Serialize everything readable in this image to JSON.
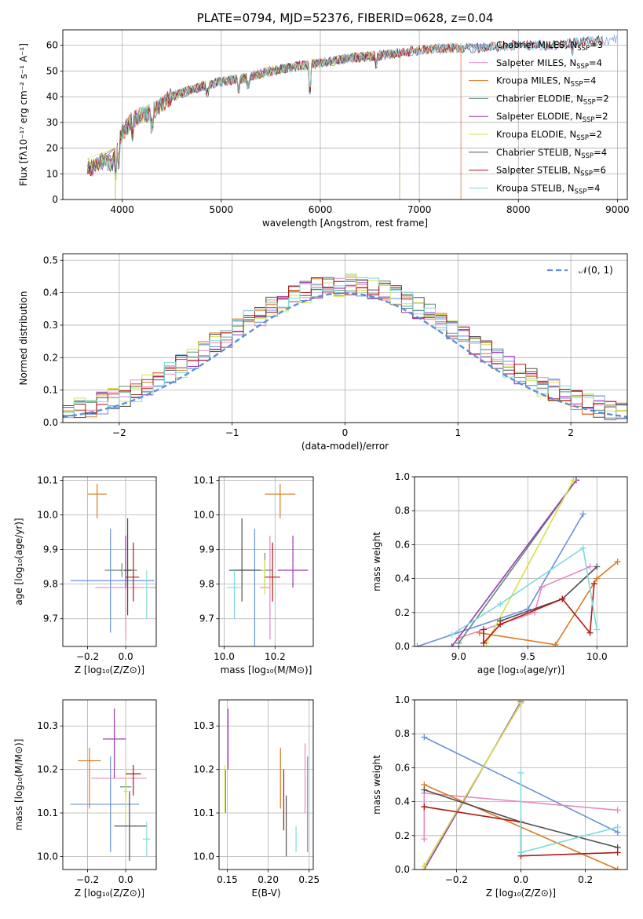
{
  "palette": [
    "#6b8fdb",
    "#e889c0",
    "#dd7a20",
    "#5f8d76",
    "#9b38b2",
    "#d4e24a",
    "#505050",
    "#b01818",
    "#7edbdc"
  ],
  "chart_data": [
    {
      "id": "spectrum",
      "type": "line",
      "title": "PLATE=0794, MJD=52376, FIBERID=0628, z=0.04",
      "xlabel": "wavelength [Angstrom, rest frame]",
      "ylabel": "Flux [fλ10⁻¹⁷ erg cm⁻² s⁻¹ A⁻¹]",
      "xlim": [
        3400,
        9100
      ],
      "ylim": [
        0,
        66
      ],
      "xticks": [
        4000,
        5000,
        6000,
        7000,
        8000,
        9000
      ],
      "yticks": [
        0,
        10,
        20,
        30,
        40,
        50,
        60
      ],
      "legend_position": "top-right",
      "continuum": {
        "x": [
          3650,
          3700,
          3800,
          3900,
          3950,
          4000,
          4100,
          4200,
          4300,
          4500,
          4800,
          5000,
          5200,
          5500,
          5800,
          6000,
          6300,
          6600,
          6800,
          7000,
          7300,
          7600,
          8000,
          8300,
          8600,
          8800
        ],
        "y": [
          13,
          12,
          15,
          14,
          20,
          26,
          31,
          33,
          34,
          40,
          44,
          46,
          47,
          50,
          52,
          53,
          55,
          56,
          57,
          58,
          59,
          59,
          60,
          60,
          61,
          62
        ]
      },
      "series": [
        {
          "name": "Chabrier MILES, N_SSP=3",
          "label_main": "Chabrier MILES, N",
          "label_sub": "SSP",
          "label_tail": "=3",
          "end": 9000
        },
        {
          "name": "Salpeter MILES, N_SSP=4",
          "label_main": "Salpeter MILES, N",
          "label_sub": "SSP",
          "label_tail": "=4",
          "end": 7420
        },
        {
          "name": "Kroupa MILES, N_SSP=4",
          "label_main": "Kroupa MILES, N",
          "label_sub": "SSP",
          "label_tail": "=4",
          "end": 7420
        },
        {
          "name": "Chabrier ELODIE, N_SSP=2",
          "label_main": "Chabrier ELODIE, N",
          "label_sub": "SSP",
          "label_tail": "=2",
          "end": 6800
        },
        {
          "name": "Salpeter ELODIE, N_SSP=2",
          "label_main": "Salpeter ELODIE, N",
          "label_sub": "SSP",
          "label_tail": "=2",
          "end": 6800
        },
        {
          "name": "Kroupa ELODIE, N_SSP=2",
          "label_main": "Kroupa ELODIE, N",
          "label_sub": "SSP",
          "label_tail": "=2",
          "end": 6800
        },
        {
          "name": "Chabrier STELIB, N_SSP=4",
          "label_main": "Chabrier STELIB, N",
          "label_sub": "SSP",
          "label_tail": "=4",
          "end": 8850
        },
        {
          "name": "Salpeter STELIB, N_SSP=6",
          "label_main": "Salpeter STELIB, N",
          "label_sub": "SSP",
          "label_tail": "=6",
          "end": 8850
        },
        {
          "name": "Kroupa STELIB, N_SSP=4",
          "label_main": "Kroupa STELIB, N",
          "label_sub": "SSP",
          "label_tail": "=4",
          "end": 8850
        }
      ]
    },
    {
      "id": "residuals",
      "type": "step-histogram",
      "xlabel": "(data-model)/error",
      "ylabel": "Normed distribution",
      "xlim": [
        -2.5,
        2.5
      ],
      "ylim": [
        0,
        0.52
      ],
      "xticks": [
        -2,
        -1,
        0,
        1,
        2
      ],
      "yticks": [
        0.0,
        0.1,
        0.2,
        0.3,
        0.4,
        0.5
      ],
      "bin_width": 0.1,
      "reference_curve": {
        "name": "𝒩(0, 1)",
        "mean": 0,
        "sigma": 1
      },
      "legend_position": "top-right"
    },
    {
      "id": "age-vs-Z",
      "type": "errorbar",
      "xlabel": "Z [log₁₀(Z/Z⊙)]",
      "ylabel": "age  [log₁₀(age/yr)]",
      "xlim": [
        -0.33,
        0.16
      ],
      "ylim": [
        9.62,
        10.11
      ],
      "xticks": [
        -0.2,
        0.0
      ],
      "yticks": [
        9.7,
        9.8,
        9.9,
        10.0,
        10.1
      ],
      "points": [
        {
          "x": -0.08,
          "y": 9.81,
          "xerr": [
            0.21,
            0.23
          ],
          "yerr": [
            0.15,
            0.15
          ]
        },
        {
          "x": 0.0,
          "y": 9.79,
          "xerr": [
            0.16,
            0.16
          ],
          "yerr": [
            0.15,
            0.15
          ]
        },
        {
          "x": -0.15,
          "y": 10.06,
          "xerr": [
            0.05,
            0.05
          ],
          "yerr": [
            0.07,
            0.03
          ]
        },
        {
          "x": -0.02,
          "y": 9.84,
          "xerr": [
            0.09,
            0.08
          ],
          "yerr": [
            0.02,
            0.02
          ]
        },
        {
          "x": 0.0,
          "y": 9.84,
          "xerr": [
            0.03,
            0.03
          ],
          "yerr": [
            0.05,
            0.1
          ]
        },
        {
          "x": 0.01,
          "y": 9.84,
          "xerr": [
            0.03,
            0.02
          ],
          "yerr": [
            0.04,
            0.03
          ]
        },
        {
          "x": 0.01,
          "y": 9.84,
          "xerr": [
            0.02,
            0.02
          ],
          "yerr": [
            0.13,
            0.15
          ]
        },
        {
          "x": 0.04,
          "y": 9.82,
          "xerr": [
            0.04,
            0.03
          ],
          "yerr": [
            0.07,
            0.1
          ]
        },
        {
          "x": 0.11,
          "y": 9.79,
          "xerr": [
            0.02,
            0.02
          ],
          "yerr": [
            0.09,
            0.05
          ]
        }
      ]
    },
    {
      "id": "age-vs-mass",
      "type": "errorbar",
      "xlabel": "mass [log₁₀(M/M⊙)]",
      "ylabel": "",
      "xlim": [
        9.98,
        10.35
      ],
      "ylim": [
        9.62,
        10.11
      ],
      "xticks": [
        10.0,
        10.2
      ],
      "yticks": [
        9.7,
        9.8,
        9.9,
        10.0,
        10.1
      ],
      "points": [
        {
          "x": 10.12,
          "y": 9.84,
          "xerr": [
            0.08,
            0.0
          ],
          "yerr": [
            0.22,
            0.12
          ]
        },
        {
          "x": 10.18,
          "y": 9.79,
          "xerr": [
            0.04,
            0.0
          ],
          "yerr": [
            0.15,
            0.15
          ]
        },
        {
          "x": 10.22,
          "y": 10.06,
          "xerr": [
            0.06,
            0.06
          ],
          "yerr": [
            0.07,
            0.03
          ]
        },
        {
          "x": 10.16,
          "y": 9.84,
          "xerr": [
            0.03,
            0.03
          ],
          "yerr": [
            0.05,
            0.05
          ]
        },
        {
          "x": 10.27,
          "y": 9.84,
          "xerr": [
            0.06,
            0.06
          ],
          "yerr": [
            0.05,
            0.1
          ]
        },
        {
          "x": 10.16,
          "y": 9.84,
          "xerr": [
            0.01,
            0.0
          ],
          "yerr": [
            0.07,
            0.03
          ]
        },
        {
          "x": 10.07,
          "y": 9.84,
          "xerr": [
            0.05,
            0.07
          ],
          "yerr": [
            0.09,
            0.15
          ]
        },
        {
          "x": 10.19,
          "y": 9.82,
          "xerr": [
            0.03,
            0.03
          ],
          "yerr": [
            0.07,
            0.1
          ]
        },
        {
          "x": 10.04,
          "y": 9.79,
          "xerr": [
            0.03,
            0.03
          ],
          "yerr": [
            0.09,
            0.05
          ]
        }
      ]
    },
    {
      "id": "weight-vs-age",
      "type": "line",
      "xlabel": "age  [log₁₀(age/yr)]",
      "ylabel": "mass weight",
      "xlim": [
        8.68,
        10.22
      ],
      "ylim": [
        0,
        1
      ],
      "xticks": [
        9.0,
        9.5,
        10.0
      ],
      "yticks": [
        0.0,
        0.2,
        0.4,
        0.6,
        0.8,
        1.0
      ],
      "series": [
        {
          "points": [
            [
              8.7,
              0.0
            ],
            [
              9.5,
              0.22
            ],
            [
              9.9,
              0.78
            ]
          ]
        },
        {
          "points": [
            [
              9.0,
              0.05
            ],
            [
              9.55,
              0.2
            ],
            [
              9.6,
              0.35
            ],
            [
              9.95,
              0.47
            ]
          ]
        },
        {
          "points": [
            [
              9.15,
              0.08
            ],
            [
              9.7,
              0.01
            ],
            [
              10.0,
              0.4
            ],
            [
              10.15,
              0.5
            ]
          ]
        },
        {
          "points": [
            [
              9.0,
              0.02
            ],
            [
              9.85,
              0.98
            ]
          ]
        },
        {
          "points": [
            [
              8.95,
              0.0
            ],
            [
              9.85,
              0.98
            ]
          ]
        },
        {
          "points": [
            [
              9.2,
              0.02
            ],
            [
              9.83,
              0.98
            ]
          ]
        },
        {
          "points": [
            [
              9.3,
              0.15
            ],
            [
              9.75,
              0.28
            ],
            [
              10.0,
              0.47
            ]
          ]
        },
        {
          "points": [
            [
              9.18,
              0.1
            ],
            [
              9.18,
              0.02
            ],
            [
              9.3,
              0.13
            ],
            [
              9.75,
              0.28
            ],
            [
              9.95,
              0.08
            ],
            [
              9.98,
              0.37
            ]
          ]
        },
        {
          "points": [
            [
              8.95,
              0.07
            ],
            [
              9.3,
              0.25
            ],
            [
              9.9,
              0.58
            ],
            [
              10.0,
              0.1
            ]
          ]
        }
      ]
    },
    {
      "id": "mass-vs-Z",
      "type": "errorbar",
      "xlabel": "Z [log₁₀(Z/Z⊙)]",
      "ylabel": "mass [log₁₀(M/M⊙)]",
      "xlim": [
        -0.33,
        0.16
      ],
      "ylim": [
        9.97,
        10.36
      ],
      "xticks": [
        -0.2,
        0.0
      ],
      "yticks": [
        10.0,
        10.1,
        10.2,
        10.3
      ],
      "points": [
        {
          "x": -0.08,
          "y": 10.12,
          "xerr": [
            0.21,
            0.15
          ],
          "yerr": [
            0.11,
            0.11
          ]
        },
        {
          "x": -0.08,
          "y": 10.18,
          "xerr": [
            0.1,
            0.19
          ],
          "yerr": [
            0.0,
            0.0
          ]
        },
        {
          "x": -0.19,
          "y": 10.22,
          "xerr": [
            0.06,
            0.06
          ],
          "yerr": [
            0.11,
            0.03
          ]
        },
        {
          "x": 0.0,
          "y": 10.16,
          "xerr": [
            0.03,
            0.03
          ],
          "yerr": [
            0.02,
            0.02
          ]
        },
        {
          "x": -0.06,
          "y": 10.27,
          "xerr": [
            0.06,
            0.06
          ],
          "yerr": [
            0.09,
            0.07
          ]
        },
        {
          "x": 0.0,
          "y": 10.15,
          "xerr": [
            0.01,
            0.01
          ],
          "yerr": [
            0.07,
            0.05
          ]
        },
        {
          "x": 0.02,
          "y": 10.07,
          "xerr": [
            0.08,
            0.09
          ],
          "yerr": [
            0.08,
            0.08
          ]
        },
        {
          "x": 0.04,
          "y": 10.19,
          "xerr": [
            0.04,
            0.04
          ],
          "yerr": [
            0.05,
            0.02
          ]
        },
        {
          "x": 0.11,
          "y": 10.04,
          "xerr": [
            0.02,
            0.02
          ],
          "yerr": [
            0.04,
            0.04
          ]
        }
      ]
    },
    {
      "id": "mass-vs-EBV",
      "type": "errorbar",
      "xlabel": "E(B-V)",
      "ylabel": "",
      "xlim": [
        0.14,
        0.255
      ],
      "ylim": [
        9.97,
        10.36
      ],
      "xticks": [
        0.15,
        0.2,
        0.25
      ],
      "yticks": [
        10.0,
        10.1,
        10.2,
        10.3
      ],
      "points": [
        {
          "x": 0.248,
          "y": 10.12,
          "xerr": [
            0,
            0
          ],
          "yerr": [
            0.11,
            0.11
          ]
        },
        {
          "x": 0.245,
          "y": 10.18,
          "xerr": [
            0,
            0
          ],
          "yerr": [
            0.08,
            0.08
          ]
        },
        {
          "x": 0.215,
          "y": 10.22,
          "xerr": [
            0,
            0
          ],
          "yerr": [
            0.11,
            0.03
          ]
        },
        {
          "x": 0.148,
          "y": 10.15,
          "xerr": [
            0,
            0
          ],
          "yerr": [
            0.05,
            0.05
          ]
        },
        {
          "x": 0.151,
          "y": 10.27,
          "xerr": [
            0,
            0
          ],
          "yerr": [
            0.07,
            0.07
          ]
        },
        {
          "x": 0.147,
          "y": 10.15,
          "xerr": [
            0,
            0
          ],
          "yerr": [
            0.05,
            0.06
          ]
        },
        {
          "x": 0.222,
          "y": 10.07,
          "xerr": [
            0,
            0
          ],
          "yerr": [
            0.07,
            0.07
          ]
        },
        {
          "x": 0.219,
          "y": 10.13,
          "xerr": [
            0,
            0
          ],
          "yerr": [
            0.07,
            0.07
          ]
        },
        {
          "x": 0.234,
          "y": 10.04,
          "xerr": [
            0,
            0
          ],
          "yerr": [
            0.03,
            0.03
          ]
        }
      ]
    },
    {
      "id": "weight-vs-Z",
      "type": "line",
      "xlabel": "Z [log₁₀(Z/Z⊙)]",
      "ylabel": "mass weight",
      "xlim": [
        -0.33,
        0.33
      ],
      "ylim": [
        0,
        1
      ],
      "xticks": [
        -0.2,
        0.0,
        0.2
      ],
      "yticks": [
        0.0,
        0.2,
        0.4,
        0.6,
        0.8,
        1.0
      ],
      "series": [
        {
          "points": [
            [
              -0.3,
              0.78
            ],
            [
              0.3,
              0.22
            ]
          ]
        },
        {
          "points": [
            [
              -0.3,
              0.18
            ],
            [
              -0.3,
              0.45
            ],
            [
              0.3,
              0.35
            ]
          ]
        },
        {
          "points": [
            [
              -0.3,
              0.5
            ],
            [
              0.3,
              0.0
            ]
          ]
        },
        {
          "points": [
            [
              -0.3,
              0.02
            ],
            [
              0.0,
              0.98
            ]
          ]
        },
        {
          "points": [
            [
              -0.3,
              0.0
            ],
            [
              0.0,
              0.99
            ]
          ]
        },
        {
          "points": [
            [
              -0.3,
              0.02
            ],
            [
              0.0,
              0.98
            ]
          ]
        },
        {
          "points": [
            [
              -0.3,
              0.47
            ],
            [
              0.0,
              0.28
            ],
            [
              0.3,
              0.13
            ]
          ]
        },
        {
          "points": [
            [
              -0.3,
              0.37
            ],
            [
              0.0,
              0.28
            ],
            [
              0.0,
              0.08
            ],
            [
              0.3,
              0.1
            ]
          ]
        },
        {
          "points": [
            [
              0.0,
              0.57
            ],
            [
              0.0,
              0.1
            ],
            [
              0.3,
              0.25
            ]
          ]
        }
      ]
    }
  ]
}
